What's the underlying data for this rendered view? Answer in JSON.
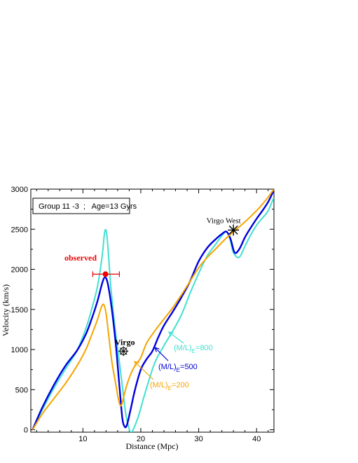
{
  "chart_data": {
    "type": "line",
    "xlabel": "Distance (Mpc)",
    "ylabel": "Velocity (km/s)",
    "xlim": [
      1,
      43
    ],
    "ylim": [
      -30,
      3000
    ],
    "xticks": [
      10,
      20,
      30,
      40
    ],
    "yticks": [
      0,
      500,
      1000,
      1500,
      2000,
      2500,
      3000
    ],
    "grid": false,
    "legend_box": {
      "text": "Group 11 -3  ;   Age=13 Gyrs",
      "placement": "top-left"
    },
    "series": [
      {
        "key": "ml800",
        "color": "#40e0d0",
        "label": {
          "base": "(M/L)",
          "sub": "E",
          "tail": "=800"
        },
        "points": [
          [
            1.3,
            0
          ],
          [
            3,
            250
          ],
          [
            5,
            520
          ],
          [
            7,
            760
          ],
          [
            9,
            990
          ],
          [
            10.5,
            1260
          ],
          [
            11.5,
            1500
          ],
          [
            12.5,
            1780
          ],
          [
            13.3,
            2150
          ],
          [
            13.8,
            2480
          ],
          [
            14.2,
            2380
          ],
          [
            14.8,
            1800
          ],
          [
            15.5,
            1300
          ],
          [
            16.2,
            900
          ],
          [
            16.8,
            550
          ],
          [
            17.3,
            250
          ],
          [
            17.8,
            60
          ],
          [
            18.4,
            -30
          ],
          [
            19.5,
            150
          ],
          [
            20.5,
            400
          ],
          [
            21.5,
            640
          ],
          [
            22.5,
            850
          ],
          [
            24,
            1050
          ],
          [
            25.5,
            1230
          ],
          [
            27,
            1430
          ],
          [
            28.5,
            1700
          ],
          [
            30,
            1950
          ],
          [
            31.5,
            2170
          ],
          [
            33,
            2320
          ],
          [
            34,
            2420
          ],
          [
            34.8,
            2470
          ],
          [
            35.4,
            2380
          ],
          [
            36,
            2210
          ],
          [
            37,
            2150
          ],
          [
            38,
            2290
          ],
          [
            39,
            2430
          ],
          [
            40,
            2550
          ],
          [
            41,
            2640
          ],
          [
            42,
            2730
          ],
          [
            43,
            2900
          ]
        ]
      },
      {
        "key": "ml500",
        "color": "#0000dd",
        "label": {
          "base": "(M/L)",
          "sub": "E",
          "tail": "=500"
        },
        "points": [
          [
            1.3,
            0
          ],
          [
            3,
            280
          ],
          [
            5,
            560
          ],
          [
            7,
            800
          ],
          [
            9,
            990
          ],
          [
            10.5,
            1190
          ],
          [
            11.5,
            1380
          ],
          [
            12.5,
            1600
          ],
          [
            13.3,
            1820
          ],
          [
            13.8,
            1900
          ],
          [
            14.3,
            1820
          ],
          [
            15,
            1500
          ],
          [
            15.7,
            1050
          ],
          [
            16.3,
            550
          ],
          [
            16.8,
            150
          ],
          [
            17.2,
            40
          ],
          [
            17.6,
            60
          ],
          [
            18.2,
            240
          ],
          [
            19,
            500
          ],
          [
            20,
            750
          ],
          [
            21,
            880
          ],
          [
            22,
            980
          ],
          [
            23,
            1150
          ],
          [
            24,
            1300
          ],
          [
            25.5,
            1470
          ],
          [
            27,
            1650
          ],
          [
            28.5,
            1850
          ],
          [
            30,
            2100
          ],
          [
            31.5,
            2270
          ],
          [
            33,
            2380
          ],
          [
            34,
            2440
          ],
          [
            34.8,
            2470
          ],
          [
            35.5,
            2380
          ],
          [
            36.2,
            2210
          ],
          [
            37,
            2250
          ],
          [
            38,
            2400
          ],
          [
            39,
            2520
          ],
          [
            40,
            2630
          ],
          [
            41,
            2730
          ],
          [
            42,
            2840
          ],
          [
            43,
            2990
          ]
        ]
      },
      {
        "key": "ml200",
        "color": "#f5a500",
        "label": {
          "base": "(M/L)",
          "sub": "E",
          "tail": "=200"
        },
        "points": [
          [
            1.3,
            0
          ],
          [
            3,
            200
          ],
          [
            5,
            390
          ],
          [
            7,
            580
          ],
          [
            9,
            800
          ],
          [
            10.5,
            1000
          ],
          [
            11.5,
            1180
          ],
          [
            12.5,
            1370
          ],
          [
            13.2,
            1530
          ],
          [
            13.6,
            1560
          ],
          [
            14,
            1450
          ],
          [
            14.5,
            1150
          ],
          [
            15,
            850
          ],
          [
            15.6,
            600
          ],
          [
            16.2,
            360
          ],
          [
            16.6,
            300
          ],
          [
            17,
            400
          ],
          [
            17.6,
            560
          ],
          [
            18.3,
            700
          ],
          [
            19,
            800
          ],
          [
            20,
            900
          ],
          [
            21,
            1080
          ],
          [
            22.5,
            1240
          ],
          [
            24,
            1380
          ],
          [
            25.5,
            1520
          ],
          [
            27,
            1680
          ],
          [
            28.5,
            1850
          ],
          [
            30,
            2020
          ],
          [
            31.5,
            2150
          ],
          [
            33,
            2260
          ],
          [
            34.5,
            2370
          ],
          [
            36,
            2470
          ],
          [
            37.5,
            2560
          ],
          [
            39,
            2660
          ],
          [
            40.5,
            2770
          ],
          [
            42,
            2900
          ],
          [
            43,
            3000
          ]
        ]
      }
    ],
    "annotations": {
      "observed": {
        "label": "observed",
        "x": 13.9,
        "y": 1940,
        "xerr": [
          11.7,
          16.3
        ],
        "color": "#ee0000"
      },
      "virgo": {
        "label": "Virgo",
        "x": 17.0,
        "y": 980
      },
      "virgo_west": {
        "label": "Virgo West",
        "x": 36.0,
        "y": 2490
      }
    }
  }
}
